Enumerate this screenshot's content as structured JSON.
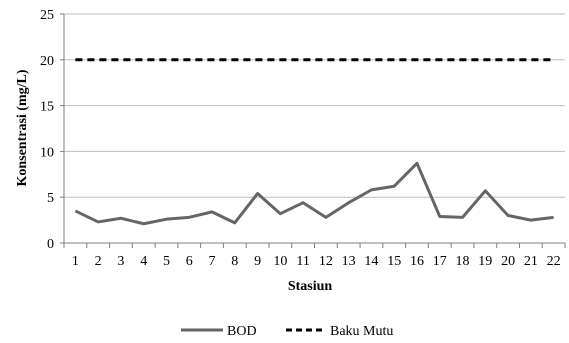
{
  "chart_data": {
    "type": "line",
    "title": "",
    "xlabel": "Stasiun",
    "ylabel": "Konsentrasi (mg/L)",
    "ylim": [
      0,
      25
    ],
    "yticks": [
      0,
      5,
      10,
      15,
      20,
      25
    ],
    "categories": [
      "1",
      "2",
      "3",
      "4",
      "5",
      "6",
      "7",
      "8",
      "9",
      "10",
      "11",
      "12",
      "13",
      "14",
      "15",
      "16",
      "17",
      "18",
      "19",
      "20",
      "21",
      "22"
    ],
    "grid": "horizontal",
    "legend": "bottom",
    "series": [
      {
        "name": "BOD",
        "color": "#666666",
        "style": "solid",
        "values": [
          3.5,
          2.3,
          2.7,
          2.1,
          2.6,
          2.8,
          3.4,
          2.2,
          5.4,
          3.2,
          4.4,
          2.8,
          4.4,
          5.8,
          6.2,
          8.7,
          2.9,
          2.8,
          5.7,
          3.0,
          2.5,
          2.8
        ]
      },
      {
        "name": "Baku Mutu",
        "color": "#000000",
        "style": "dashed",
        "values": [
          20,
          20,
          20,
          20,
          20,
          20,
          20,
          20,
          20,
          20,
          20,
          20,
          20,
          20,
          20,
          20,
          20,
          20,
          20,
          20,
          20,
          20
        ]
      }
    ]
  }
}
